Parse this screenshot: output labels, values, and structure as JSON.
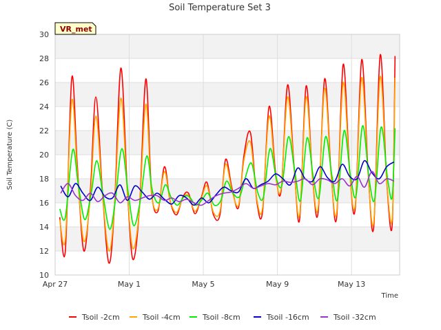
{
  "chart_data": {
    "type": "line",
    "title": "Soil Temperature Set 3",
    "xlabel": "Time",
    "ylabel": "Soil Temperature (C)",
    "badge": "VR_met",
    "ylim": [
      10,
      30
    ],
    "yticks": [
      10,
      12,
      14,
      16,
      18,
      20,
      22,
      24,
      26,
      28,
      30
    ],
    "xlim": [
      0,
      18.6
    ],
    "xticks": [
      {
        "day": 0,
        "label": "Apr 27"
      },
      {
        "day": 4,
        "label": "May 1"
      },
      {
        "day": 8,
        "label": "May 5"
      },
      {
        "day": 12,
        "label": "May 9"
      },
      {
        "day": 16,
        "label": "May 13"
      }
    ],
    "grid": true,
    "legend_position": "bottom",
    "series": [
      {
        "name": "Tsoil -2cm",
        "color": "#ff0000",
        "x": [
          0.25,
          0.55,
          0.9,
          1.2,
          1.55,
          1.9,
          2.2,
          2.55,
          2.9,
          3.2,
          3.55,
          3.9,
          4.2,
          4.55,
          4.9,
          5.2,
          5.55,
          5.9,
          6.2,
          6.55,
          6.9,
          7.2,
          7.55,
          7.9,
          8.2,
          8.55,
          8.9,
          9.2,
          9.55,
          9.9,
          10.2,
          10.55,
          10.9,
          11.2,
          11.55,
          11.9,
          12.2,
          12.55,
          12.9,
          13.2,
          13.55,
          13.9,
          14.2,
          14.55,
          14.9,
          15.2,
          15.55,
          15.9,
          16.2,
          16.55,
          16.9,
          17.2,
          17.55,
          17.9,
          18.2,
          18.35
        ],
        "y": [
          14.8,
          12.0,
          26.4,
          19.0,
          12.0,
          17.0,
          24.8,
          17.0,
          11.0,
          15.5,
          27.2,
          17.0,
          11.3,
          15.5,
          26.3,
          17.0,
          15.3,
          19.0,
          16.2,
          15.0,
          16.5,
          16.8,
          15.1,
          16.5,
          17.7,
          15.0,
          15.0,
          19.6,
          17.2,
          15.6,
          20.0,
          21.8,
          16.0,
          15.3,
          24.0,
          18.5,
          17.0,
          25.8,
          19.0,
          14.6,
          25.7,
          18.0,
          15.2,
          26.3,
          18.5,
          14.8,
          27.5,
          18.7,
          15.5,
          27.9,
          18.5,
          14.0,
          28.3,
          17.8,
          14.2,
          28.2
        ]
      },
      {
        "name": "Tsoil -4cm",
        "color": "#ffa500",
        "x": [
          0.25,
          0.55,
          0.9,
          1.2,
          1.55,
          1.9,
          2.2,
          2.55,
          2.9,
          3.2,
          3.55,
          3.9,
          4.2,
          4.55,
          4.9,
          5.2,
          5.55,
          5.9,
          6.2,
          6.55,
          6.9,
          7.2,
          7.55,
          7.9,
          8.2,
          8.55,
          8.9,
          9.2,
          9.55,
          9.9,
          10.2,
          10.55,
          10.9,
          11.2,
          11.55,
          11.9,
          12.2,
          12.55,
          12.9,
          13.2,
          13.55,
          13.9,
          14.2,
          14.55,
          14.9,
          15.2,
          15.55,
          15.9,
          16.2,
          16.55,
          16.9,
          17.2,
          17.55,
          17.9,
          18.2,
          18.35
        ],
        "y": [
          14.6,
          13.0,
          24.5,
          18.5,
          12.8,
          16.5,
          23.2,
          16.8,
          12.0,
          15.5,
          24.7,
          16.8,
          12.2,
          15.5,
          24.2,
          16.8,
          15.5,
          18.6,
          16.2,
          15.2,
          16.4,
          16.6,
          15.3,
          16.4,
          17.4,
          15.2,
          15.3,
          19.2,
          17.0,
          15.8,
          19.6,
          21.0,
          16.2,
          15.6,
          23.2,
          18.2,
          17.2,
          24.8,
          18.8,
          15.0,
          24.8,
          18.0,
          15.6,
          25.5,
          18.3,
          15.2,
          26.0,
          18.5,
          15.8,
          26.4,
          18.3,
          14.4,
          26.5,
          17.8,
          14.7,
          26.4
        ]
      },
      {
        "name": "Tsoil -8cm",
        "color": "#00ee00",
        "x": [
          0.25,
          0.55,
          0.95,
          1.25,
          1.6,
          1.95,
          2.25,
          2.6,
          2.95,
          3.25,
          3.6,
          3.95,
          4.25,
          4.6,
          4.95,
          5.25,
          5.6,
          5.95,
          6.25,
          6.6,
          6.95,
          7.25,
          7.6,
          7.95,
          8.25,
          8.6,
          8.95,
          9.25,
          9.6,
          9.95,
          10.25,
          10.6,
          10.95,
          11.25,
          11.6,
          11.95,
          12.25,
          12.6,
          12.95,
          13.25,
          13.6,
          13.95,
          14.25,
          14.6,
          14.95,
          15.25,
          15.6,
          15.95,
          16.25,
          16.6,
          16.95,
          17.25,
          17.6,
          17.95,
          18.2,
          18.35
        ],
        "y": [
          15.5,
          14.8,
          20.4,
          17.5,
          14.6,
          16.8,
          19.5,
          16.5,
          13.8,
          16.2,
          20.5,
          16.8,
          14.1,
          16.2,
          19.9,
          17.0,
          16.0,
          17.5,
          16.5,
          15.8,
          16.5,
          16.5,
          15.8,
          16.3,
          16.8,
          15.8,
          16.2,
          17.8,
          16.8,
          16.5,
          18.0,
          19.3,
          16.8,
          16.5,
          20.5,
          18.0,
          17.5,
          21.5,
          18.5,
          16.2,
          21.4,
          18.0,
          16.5,
          21.5,
          18.2,
          16.3,
          22.0,
          18.2,
          16.6,
          22.4,
          18.0,
          16.3,
          22.3,
          18.0,
          16.5,
          22.2
        ]
      },
      {
        "name": "Tsoil -16cm",
        "color": "#0000cc",
        "x": [
          0.3,
          0.7,
          1.1,
          1.5,
          1.9,
          2.3,
          2.7,
          3.1,
          3.5,
          3.9,
          4.3,
          4.7,
          5.1,
          5.5,
          5.9,
          6.3,
          6.7,
          7.1,
          7.5,
          7.9,
          8.3,
          8.7,
          9.1,
          9.5,
          9.9,
          10.3,
          10.7,
          11.1,
          11.5,
          11.9,
          12.3,
          12.7,
          13.1,
          13.5,
          13.9,
          14.3,
          14.7,
          15.1,
          15.5,
          15.9,
          16.3,
          16.7,
          17.1,
          17.5,
          17.9,
          18.3
        ],
        "y": [
          17.4,
          16.5,
          17.6,
          16.8,
          16.2,
          17.3,
          16.5,
          16.4,
          17.5,
          16.2,
          17.4,
          16.9,
          16.3,
          16.8,
          16.3,
          15.9,
          16.6,
          16.4,
          15.8,
          16.4,
          16.0,
          16.7,
          17.3,
          17.0,
          16.9,
          18.0,
          17.2,
          17.5,
          17.8,
          18.4,
          18.0,
          17.5,
          18.9,
          18.0,
          17.8,
          19.0,
          18.1,
          17.8,
          19.2,
          18.2,
          18.0,
          19.5,
          18.5,
          18.0,
          19.0,
          19.4
        ]
      },
      {
        "name": "Tsoil -32cm",
        "color": "#9933cc",
        "x": [
          0.3,
          0.7,
          1.1,
          1.5,
          1.9,
          2.3,
          2.7,
          3.1,
          3.5,
          3.9,
          4.3,
          4.7,
          5.1,
          5.5,
          5.9,
          6.3,
          6.7,
          7.1,
          7.5,
          7.9,
          8.3,
          8.7,
          9.1,
          9.5,
          9.9,
          10.3,
          10.7,
          11.1,
          11.5,
          11.9,
          12.3,
          12.7,
          13.1,
          13.5,
          13.9,
          14.3,
          14.7,
          15.1,
          15.5,
          15.9,
          16.3,
          16.7,
          17.1,
          17.5,
          17.9,
          18.3
        ],
        "y": [
          16.8,
          17.6,
          16.6,
          16.2,
          16.8,
          16.1,
          16.6,
          16.8,
          16.0,
          16.5,
          16.2,
          16.4,
          16.6,
          16.6,
          16.2,
          16.4,
          16.1,
          16.3,
          16.0,
          15.8,
          16.2,
          16.6,
          16.8,
          16.9,
          17.2,
          17.6,
          17.2,
          17.4,
          17.6,
          17.5,
          17.8,
          17.7,
          17.8,
          18.0,
          17.5,
          18.0,
          17.9,
          17.6,
          18.0,
          17.4,
          18.2,
          17.3,
          18.6,
          17.6,
          18.0,
          17.8
        ]
      }
    ]
  }
}
